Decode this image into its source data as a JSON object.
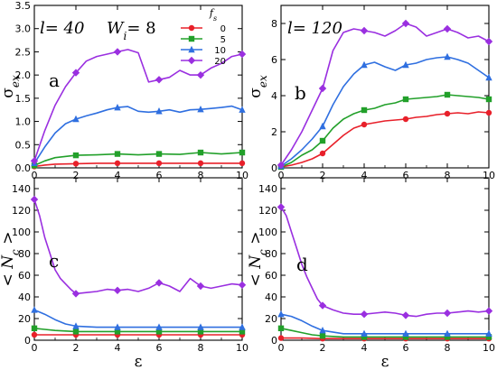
{
  "chart_data": [
    {
      "panel": "a",
      "type": "line",
      "annotation": "l= 40   W_i= 8",
      "annotation_parts": {
        "l": "l= 40",
        "w_sym": "W",
        "w_sub": "i",
        "w_val": "= 8"
      },
      "panel_label": "a",
      "ylabel": "σex",
      "ylabel_parts": {
        "base": "σ",
        "sub": "ex"
      },
      "xlabel": "",
      "xlim": [
        0,
        10
      ],
      "ylim": [
        0,
        3.5
      ],
      "xticks": [
        0,
        2,
        4,
        6,
        8,
        10
      ],
      "yticks": [
        0.0,
        0.5,
        1.0,
        1.5,
        2.0,
        2.5,
        3.0,
        3.5
      ],
      "ytick_labels": [
        "0.0",
        "0.5",
        "1.0",
        "1.5",
        "2.0",
        "2.5",
        "3.0",
        "3.5"
      ],
      "xtick_labels": [
        "0",
        "2",
        "4",
        "6",
        "8",
        "10"
      ],
      "legend": {
        "title": "fs",
        "title_parts": {
          "base": "f",
          "sub": "s"
        },
        "placement": "top-right"
      },
      "series": [
        {
          "name": "0",
          "color": "#e8202a",
          "marker": "circle",
          "x": [
            0,
            0.5,
            1,
            2,
            3,
            4,
            5,
            6,
            7,
            8,
            9,
            10
          ],
          "y": [
            0.03,
            0.06,
            0.08,
            0.09,
            0.1,
            0.1,
            0.1,
            0.1,
            0.1,
            0.1,
            0.1,
            0.1
          ]
        },
        {
          "name": "5",
          "color": "#22a02a",
          "marker": "square",
          "x": [
            0,
            0.5,
            1,
            2,
            3,
            4,
            5,
            6,
            7,
            8,
            9,
            10
          ],
          "y": [
            0.05,
            0.15,
            0.22,
            0.27,
            0.28,
            0.3,
            0.28,
            0.3,
            0.29,
            0.33,
            0.3,
            0.33
          ]
        },
        {
          "name": "10",
          "color": "#2f6fe0",
          "marker": "triangle",
          "x": [
            0,
            0.5,
            1,
            1.5,
            2,
            2.5,
            3,
            3.5,
            4,
            4.5,
            5,
            5.5,
            6,
            6.5,
            7,
            7.5,
            8,
            8.5,
            9,
            9.5,
            10
          ],
          "y": [
            0.1,
            0.45,
            0.75,
            0.95,
            1.05,
            1.12,
            1.18,
            1.25,
            1.3,
            1.32,
            1.22,
            1.2,
            1.22,
            1.25,
            1.2,
            1.25,
            1.26,
            1.28,
            1.3,
            1.33,
            1.25
          ]
        },
        {
          "name": "20",
          "color": "#9a2fe0",
          "marker": "diamond",
          "x": [
            0,
            0.5,
            1,
            1.5,
            2,
            2.5,
            3,
            3.5,
            4,
            4.5,
            5,
            5.5,
            6,
            6.5,
            7,
            7.5,
            8,
            8.5,
            9,
            9.5,
            10
          ],
          "y": [
            0.15,
            0.8,
            1.35,
            1.75,
            2.05,
            2.3,
            2.4,
            2.45,
            2.5,
            2.55,
            2.48,
            1.85,
            1.9,
            1.95,
            2.1,
            2.0,
            2.0,
            2.15,
            2.25,
            2.4,
            2.45
          ]
        }
      ]
    },
    {
      "panel": "b",
      "type": "line",
      "annotation": "l= 120",
      "panel_label": "b",
      "ylabel": "σex",
      "ylabel_parts": {
        "base": "σ",
        "sub": "ex"
      },
      "xlabel": "",
      "xlim": [
        0,
        10
      ],
      "ylim": [
        0,
        9
      ],
      "xticks": [
        0,
        2,
        4,
        6,
        8,
        10
      ],
      "yticks": [
        0,
        2,
        4,
        6,
        8
      ],
      "ytick_labels": [
        "0",
        "2",
        "4",
        "6",
        "8"
      ],
      "xtick_labels": [
        "0",
        "2",
        "4",
        "6",
        "8",
        "10"
      ],
      "series": [
        {
          "name": "0",
          "color": "#e8202a",
          "marker": "circle",
          "x": [
            0,
            0.5,
            1,
            1.5,
            2,
            2.5,
            3,
            3.5,
            4,
            4.5,
            5,
            5.5,
            6,
            6.5,
            7,
            7.5,
            8,
            8.5,
            9,
            9.5,
            10
          ],
          "y": [
            0.05,
            0.15,
            0.3,
            0.5,
            0.8,
            1.3,
            1.8,
            2.2,
            2.4,
            2.5,
            2.6,
            2.65,
            2.7,
            2.8,
            2.85,
            2.95,
            3.0,
            3.05,
            3.0,
            3.1,
            3.05
          ]
        },
        {
          "name": "5",
          "color": "#22a02a",
          "marker": "square",
          "x": [
            0,
            0.5,
            1,
            1.5,
            2,
            2.5,
            3,
            3.5,
            4,
            4.5,
            5,
            5.5,
            6,
            6.5,
            7,
            7.5,
            8,
            8.5,
            9,
            9.5,
            10
          ],
          "y": [
            0.05,
            0.3,
            0.7,
            1.0,
            1.5,
            2.2,
            2.7,
            3.0,
            3.2,
            3.3,
            3.5,
            3.6,
            3.8,
            3.85,
            3.9,
            3.95,
            4.05,
            4.0,
            3.95,
            3.9,
            3.8
          ]
        },
        {
          "name": "10",
          "color": "#2f6fe0",
          "marker": "triangle",
          "x": [
            0,
            0.5,
            1,
            1.5,
            2,
            2.5,
            3,
            3.5,
            4,
            4.5,
            5,
            5.5,
            6,
            6.5,
            7,
            7.5,
            8,
            8.5,
            9,
            9.5,
            10
          ],
          "y": [
            0.1,
            0.5,
            1.0,
            1.6,
            2.3,
            3.5,
            4.5,
            5.2,
            5.7,
            5.85,
            5.6,
            5.4,
            5.7,
            5.8,
            6.0,
            6.1,
            6.15,
            6.0,
            5.8,
            5.4,
            5.0
          ]
        },
        {
          "name": "20",
          "color": "#9a2fe0",
          "marker": "diamond",
          "x": [
            0,
            0.5,
            1,
            1.5,
            2,
            2.5,
            3,
            3.5,
            4,
            4.5,
            5,
            5.5,
            6,
            6.5,
            7,
            7.5,
            8,
            8.5,
            9,
            9.5,
            10
          ],
          "y": [
            0.15,
            1.0,
            2.0,
            3.2,
            4.4,
            6.5,
            7.5,
            7.7,
            7.6,
            7.5,
            7.3,
            7.6,
            8.0,
            7.8,
            7.3,
            7.5,
            7.7,
            7.5,
            7.2,
            7.3,
            7.0
          ]
        }
      ]
    },
    {
      "panel": "c",
      "type": "line",
      "panel_label": "c",
      "ylabel": "< Nc >",
      "ylabel_parts": {
        "left": "< ",
        "base": "N",
        "sub": "c",
        "right": " >"
      },
      "xlabel": "ε",
      "xlim": [
        0,
        10
      ],
      "ylim": [
        0,
        150
      ],
      "xticks": [
        0,
        2,
        4,
        6,
        8,
        10
      ],
      "yticks": [
        0,
        20,
        40,
        60,
        80,
        100,
        120,
        140
      ],
      "ytick_labels": [
        "0",
        "20",
        "40",
        "60",
        "80",
        "100",
        "120",
        "140"
      ],
      "xtick_labels": [
        "0",
        "2",
        "4",
        "6",
        "8",
        "10"
      ],
      "series": [
        {
          "name": "0",
          "color": "#e8202a",
          "marker": "circle",
          "x": [
            0,
            1,
            2,
            3,
            4,
            5,
            6,
            7,
            8,
            9,
            10
          ],
          "y": [
            5,
            5,
            5,
            5,
            5,
            5,
            5,
            5,
            5,
            5,
            5
          ]
        },
        {
          "name": "5",
          "color": "#22a02a",
          "marker": "square",
          "x": [
            0,
            0.5,
            1,
            1.5,
            2,
            3,
            4,
            5,
            6,
            7,
            8,
            9,
            10
          ],
          "y": [
            11,
            10,
            9,
            8.5,
            8,
            8,
            8,
            8,
            8,
            8,
            8,
            8,
            8
          ]
        },
        {
          "name": "10",
          "color": "#2f6fe0",
          "marker": "triangle",
          "x": [
            0,
            0.5,
            1,
            1.5,
            2,
            3,
            4,
            5,
            6,
            7,
            8,
            9,
            10
          ],
          "y": [
            28,
            24,
            19,
            15,
            13,
            12,
            12,
            12,
            12,
            12,
            12,
            12,
            12
          ]
        },
        {
          "name": "20",
          "color": "#9a2fe0",
          "marker": "diamond",
          "x": [
            0,
            0.25,
            0.5,
            0.75,
            1,
            1.25,
            1.5,
            1.75,
            2,
            2.5,
            3,
            3.5,
            4,
            4.5,
            5,
            5.5,
            6,
            6.5,
            7,
            7.5,
            8,
            8.5,
            9,
            9.5,
            10
          ],
          "y": [
            130,
            115,
            95,
            80,
            65,
            57,
            52,
            47,
            43,
            44,
            45,
            47,
            46,
            47,
            45,
            48,
            53,
            50,
            45,
            57,
            50,
            48,
            50,
            52,
            51
          ]
        }
      ]
    },
    {
      "panel": "d",
      "type": "line",
      "panel_label": "d",
      "ylabel": "< Nc >",
      "ylabel_parts": {
        "left": "< ",
        "base": "N",
        "sub": "c",
        "right": " >"
      },
      "xlabel": "ε",
      "xlim": [
        0,
        10
      ],
      "ylim": [
        0,
        150
      ],
      "xticks": [
        0,
        2,
        4,
        6,
        8,
        10
      ],
      "yticks": [
        0,
        20,
        40,
        60,
        80,
        100,
        120,
        140
      ],
      "ytick_labels": [
        "0",
        "20",
        "40",
        "60",
        "80",
        "100",
        "120",
        "140"
      ],
      "xtick_labels": [
        "0",
        "2",
        "4",
        "6",
        "8",
        "10"
      ],
      "series": [
        {
          "name": "0",
          "color": "#e8202a",
          "marker": "circle",
          "x": [
            0,
            1,
            2,
            3,
            4,
            5,
            6,
            7,
            8,
            9,
            10
          ],
          "y": [
            2,
            2,
            1.5,
            1.5,
            1.5,
            1.5,
            1.5,
            1.5,
            1.5,
            1.5,
            1.5
          ]
        },
        {
          "name": "5",
          "color": "#22a02a",
          "marker": "square",
          "x": [
            0,
            0.5,
            1,
            1.5,
            2,
            3,
            4,
            5,
            6,
            7,
            8,
            9,
            10
          ],
          "y": [
            11,
            9,
            7,
            5,
            4,
            3,
            3,
            3,
            3,
            3,
            3,
            3,
            3
          ]
        },
        {
          "name": "10",
          "color": "#2f6fe0",
          "marker": "triangle",
          "x": [
            0,
            0.5,
            1,
            1.5,
            2,
            3,
            4,
            5,
            6,
            7,
            8,
            9,
            10
          ],
          "y": [
            24,
            22,
            18,
            13,
            9,
            6,
            6,
            6,
            6,
            6,
            6,
            6,
            6
          ]
        },
        {
          "name": "20",
          "color": "#9a2fe0",
          "marker": "diamond",
          "x": [
            0,
            0.25,
            0.5,
            0.75,
            1,
            1.25,
            1.5,
            1.75,
            2,
            2.5,
            3,
            3.5,
            4,
            4.5,
            5,
            5.5,
            6,
            6.5,
            7,
            7.5,
            8,
            8.5,
            9,
            9.5,
            10
          ],
          "y": [
            123,
            115,
            100,
            85,
            70,
            58,
            48,
            38,
            32,
            28,
            25,
            24,
            24,
            25,
            26,
            25,
            23,
            22,
            24,
            25,
            25,
            26,
            27,
            26,
            27
          ]
        }
      ]
    }
  ]
}
